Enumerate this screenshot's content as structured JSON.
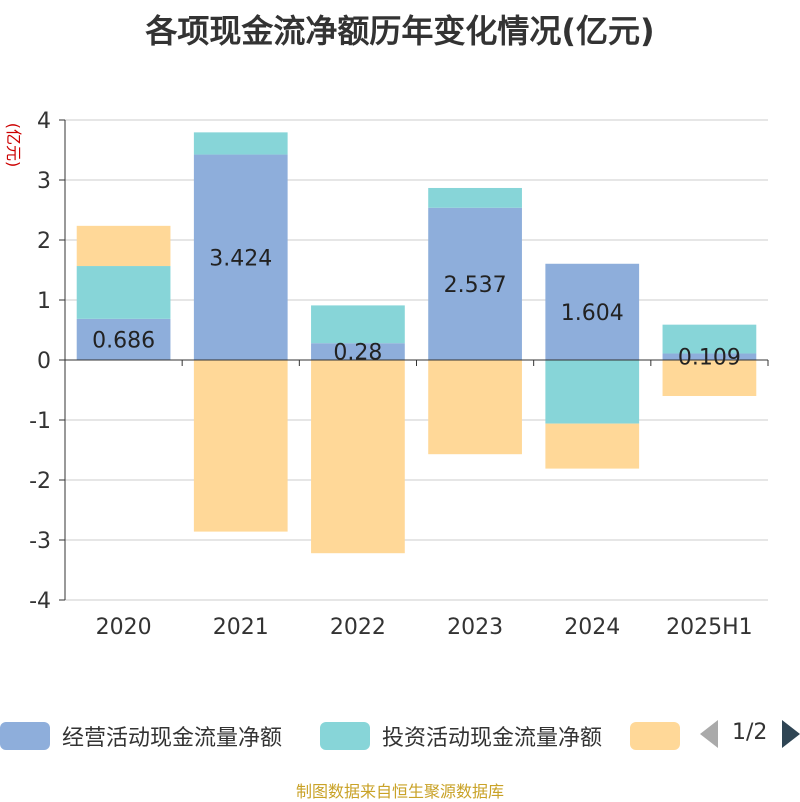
{
  "chart_data": {
    "type": "bar",
    "stacked": true,
    "title": "各项现金流净额历年变化情况(亿元)",
    "ylabel": "(亿元)",
    "xlabel": "",
    "categories": [
      "2020",
      "2021",
      "2022",
      "2023",
      "2024",
      "2025H1"
    ],
    "ylim": [
      -4,
      4
    ],
    "yticks": [
      "4",
      "3",
      "2",
      "1",
      "0",
      "-1",
      "-2",
      "-3",
      "-4"
    ],
    "grid": true,
    "legend_position": "bottom",
    "series": [
      {
        "name": "经营活动现金流量净额",
        "color": "#8eaedb",
        "values": [
          0.686,
          3.424,
          0.28,
          2.537,
          1.604,
          0.109
        ],
        "labels": [
          "0.686",
          "3.424",
          "0.28",
          "2.537",
          "1.604",
          "0.109"
        ]
      },
      {
        "name": "投资活动现金流量净额",
        "color": "#87d5d8",
        "values": [
          0.88,
          0.37,
          0.63,
          0.33,
          -1.06,
          0.48
        ]
      },
      {
        "name": "",
        "color": "#ffd898",
        "values": [
          0.67,
          -2.86,
          -3.22,
          -1.57,
          -0.75,
          -0.6
        ]
      }
    ]
  },
  "legend": {
    "items": [
      {
        "label": "经营活动现金流量净额",
        "color": "#8eaedb"
      },
      {
        "label": "投资活动现金流量净额",
        "color": "#87d5d8"
      },
      {
        "label": "",
        "color": "#ffd898"
      }
    ],
    "pager_text": "1/2"
  },
  "source_text": "制图数据来自恒生聚源数据库"
}
